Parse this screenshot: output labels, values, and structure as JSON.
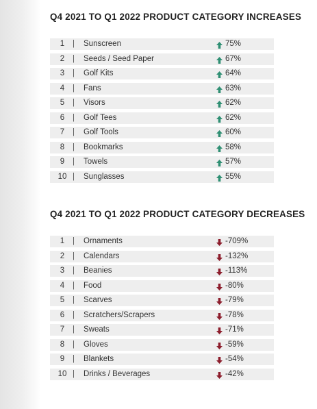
{
  "sections": [
    {
      "title": "Q4 2021 TO Q1 2022 PRODUCT CATEGORY INCREASES",
      "direction": "up",
      "rows": [
        {
          "rank": 1,
          "name": "Sunscreen",
          "change": "75%"
        },
        {
          "rank": 2,
          "name": "Seeds / Seed Paper",
          "change": "67%"
        },
        {
          "rank": 3,
          "name": "Golf Kits",
          "change": "64%"
        },
        {
          "rank": 4,
          "name": "Fans",
          "change": "63%"
        },
        {
          "rank": 5,
          "name": "Visors",
          "change": "62%"
        },
        {
          "rank": 6,
          "name": "Golf Tees",
          "change": "62%"
        },
        {
          "rank": 7,
          "name": "Golf Tools",
          "change": "60%"
        },
        {
          "rank": 8,
          "name": "Bookmarks",
          "change": "58%"
        },
        {
          "rank": 9,
          "name": "Towels",
          "change": "57%"
        },
        {
          "rank": 10,
          "name": "Sunglasses",
          "change": "55%"
        }
      ]
    },
    {
      "title": "Q4 2021 TO Q1 2022 PRODUCT CATEGORY DECREASES",
      "direction": "down",
      "rows": [
        {
          "rank": 1,
          "name": "Ornaments",
          "change": "-709%"
        },
        {
          "rank": 2,
          "name": "Calendars",
          "change": "-132%"
        },
        {
          "rank": 3,
          "name": "Beanies",
          "change": "-113%"
        },
        {
          "rank": 4,
          "name": "Food",
          "change": "-80%"
        },
        {
          "rank": 5,
          "name": "Scarves",
          "change": "-79%"
        },
        {
          "rank": 6,
          "name": "Scratchers/Scrapers",
          "change": "-78%"
        },
        {
          "rank": 7,
          "name": "Sweats",
          "change": "-71%"
        },
        {
          "rank": 8,
          "name": "Gloves",
          "change": "-59%"
        },
        {
          "rank": 9,
          "name": "Blankets",
          "change": "-54%"
        },
        {
          "rank": 10,
          "name": "Drinks / Beverages",
          "change": "-42%"
        }
      ]
    }
  ]
}
